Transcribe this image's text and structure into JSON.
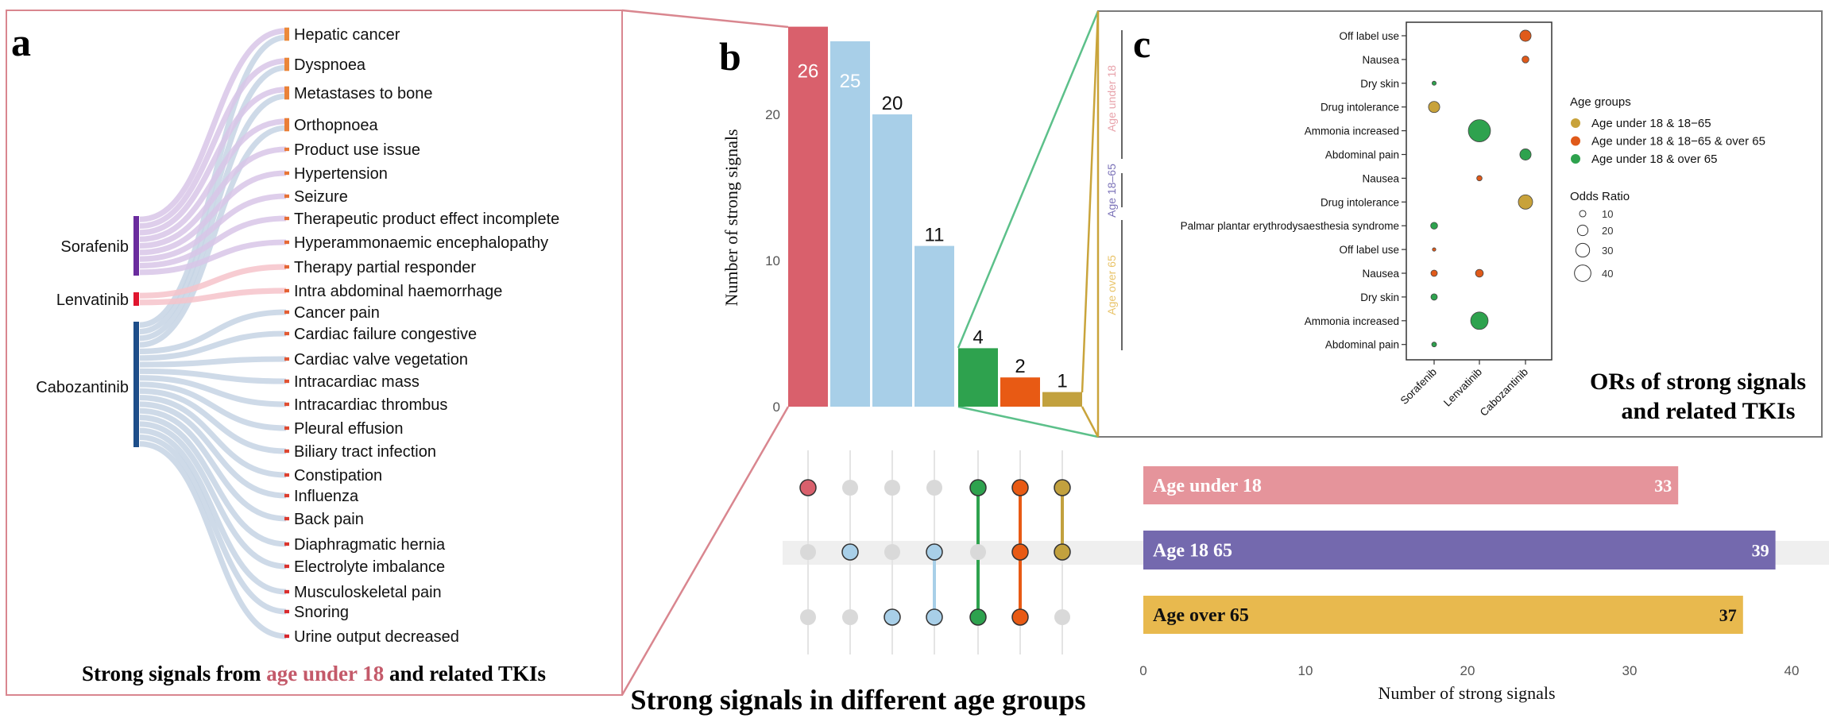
{
  "panel_a": {
    "label": "a",
    "caption_pre": "Strong signals from ",
    "caption_highlight": "age under 18",
    "caption_post": " and related TKIs"
  },
  "panel_b": {
    "label": "b",
    "caption": "Strong signals in different age groups"
  },
  "panel_c": {
    "label": "c",
    "caption_line1": "ORs of strong signals",
    "caption_line2": "and related TKIs"
  },
  "colors": {
    "panel_a_border": "#d9868f",
    "panel_c_border": "#7a7a7a",
    "highlight_text": "#c45a6a",
    "zoom_green": "#5cc08a",
    "zoom_gold": "#c9a43b",
    "band": "#efefef"
  },
  "chart_data": [
    {
      "type": "sankey",
      "title": "Strong signals from age under 18 and related TKIs",
      "sources": [
        {
          "name": "Sorafenib",
          "color": "#6a2c9e",
          "link_color": "#d8c5e8"
        },
        {
          "name": "Lenvatinib",
          "color": "#e0152e",
          "link_color": "#f6c3ca"
        },
        {
          "name": "Cabozantinib",
          "color": "#1d4e8a",
          "link_color": "#c6d4e4"
        }
      ],
      "targets": [
        {
          "name": "Hepatic cancer",
          "from": [
            "Sorafenib",
            "Cabozantinib"
          ]
        },
        {
          "name": "Dyspnoea",
          "from": [
            "Sorafenib",
            "Cabozantinib"
          ]
        },
        {
          "name": "Metastases to bone",
          "from": [
            "Sorafenib",
            "Cabozantinib"
          ]
        },
        {
          "name": "Orthopnoea",
          "from": [
            "Sorafenib",
            "Cabozantinib"
          ]
        },
        {
          "name": "Product use issue",
          "from": [
            "Sorafenib"
          ]
        },
        {
          "name": "Hypertension",
          "from": [
            "Sorafenib"
          ]
        },
        {
          "name": "Seizure",
          "from": [
            "Sorafenib"
          ]
        },
        {
          "name": "Therapeutic product effect incomplete",
          "from": [
            "Sorafenib"
          ]
        },
        {
          "name": "Hyperammonaemic encephalopathy",
          "from": [
            "Sorafenib"
          ]
        },
        {
          "name": "Therapy partial responder",
          "from": [
            "Lenvatinib"
          ]
        },
        {
          "name": "Intra abdominal haemorrhage",
          "from": [
            "Lenvatinib"
          ]
        },
        {
          "name": "Cancer pain",
          "from": [
            "Cabozantinib"
          ]
        },
        {
          "name": "Cardiac failure congestive",
          "from": [
            "Cabozantinib"
          ]
        },
        {
          "name": "Cardiac valve vegetation",
          "from": [
            "Cabozantinib"
          ]
        },
        {
          "name": "Intracardiac mass",
          "from": [
            "Cabozantinib"
          ]
        },
        {
          "name": "Intracardiac thrombus",
          "from": [
            "Cabozantinib"
          ]
        },
        {
          "name": "Pleural effusion",
          "from": [
            "Cabozantinib"
          ]
        },
        {
          "name": "Biliary tract infection",
          "from": [
            "Cabozantinib"
          ]
        },
        {
          "name": "Constipation",
          "from": [
            "Cabozantinib"
          ]
        },
        {
          "name": "Influenza",
          "from": [
            "Cabozantinib"
          ]
        },
        {
          "name": "Back pain",
          "from": [
            "Cabozantinib"
          ]
        },
        {
          "name": "Diaphragmatic hernia",
          "from": [
            "Cabozantinib"
          ]
        },
        {
          "name": "Electrolyte imbalance",
          "from": [
            "Cabozantinib"
          ]
        },
        {
          "name": "Musculoskeletal pain",
          "from": [
            "Cabozantinib"
          ]
        },
        {
          "name": "Snoring",
          "from": [
            "Cabozantinib"
          ]
        },
        {
          "name": "Urine output decreased",
          "from": [
            "Cabozantinib"
          ]
        }
      ],
      "target_color_start": "#ec8a3a",
      "target_color_end": "#d8262c"
    },
    {
      "type": "bar",
      "title": "Strong signals in different age groups",
      "ylabel": "Number of strong signals",
      "yticks": [
        "0",
        "10",
        "20"
      ],
      "ylim": [
        0,
        26
      ],
      "sets": [
        "Age under 18",
        "Age 18-65",
        "Age over 65"
      ],
      "intersections": [
        {
          "members": [
            1,
            0,
            0
          ],
          "value": 26,
          "label": "26",
          "color": "#d9606c",
          "label_inside": true
        },
        {
          "members": [
            0,
            1,
            0
          ],
          "value": 25,
          "label": "25",
          "color": "#a8cfe8",
          "label_inside": true
        },
        {
          "members": [
            0,
            0,
            1
          ],
          "value": 20,
          "label": "20",
          "color": "#a8cfe8",
          "label_inside": false
        },
        {
          "members": [
            0,
            1,
            1
          ],
          "value": 11,
          "label": "11",
          "color": "#a8cfe8",
          "label_inside": false
        },
        {
          "members": [
            1,
            0,
            1
          ],
          "value": 4,
          "label": "4",
          "color": "#2ea24e",
          "label_inside": false
        },
        {
          "members": [
            1,
            1,
            1
          ],
          "value": 2,
          "label": "2",
          "color": "#e85a14",
          "label_inside": false
        },
        {
          "members": [
            1,
            1,
            0
          ],
          "value": 1,
          "label": "1",
          "color": "#c2a13e",
          "label_inside": false
        }
      ],
      "inactive_dot_color": "#d9d9d9"
    },
    {
      "type": "scatter",
      "title": "ORs of strong signals and related TKIs",
      "x_categories": [
        "Sorafenib",
        "Lenvatinib",
        "Cabozantinib"
      ],
      "rows": [
        "Off label use",
        "Nausea",
        "Dry skin",
        "Drug intolerance",
        "Ammonia increased",
        "Abdominal pain",
        "Nausea",
        "Drug intolerance",
        "Palmar plantar erythrodysaesthesia syndrome",
        "Off label use",
        "Nausea",
        "Dry skin",
        "Ammonia increased",
        "Abdominal pain"
      ],
      "row_groups": [
        {
          "label": "Age under 18",
          "color": "#e8a3ab",
          "first_row": 0,
          "last_row": 5
        },
        {
          "label": "Age 18–65",
          "color": "#7b72b8",
          "first_row": 6,
          "last_row": 7
        },
        {
          "label": "Age over 65",
          "color": "#e9c46a",
          "first_row": 8,
          "last_row": 13
        }
      ],
      "points": [
        {
          "row": 0,
          "tki": "Cabozantinib",
          "age_group": 1,
          "odds_ratio": 22
        },
        {
          "row": 1,
          "tki": "Cabozantinib",
          "age_group": 1,
          "odds_ratio": 11
        },
        {
          "row": 2,
          "tki": "Sorafenib",
          "age_group": 2,
          "odds_ratio": 6
        },
        {
          "row": 3,
          "tki": "Sorafenib",
          "age_group": 0,
          "odds_ratio": 22
        },
        {
          "row": 4,
          "tki": "Lenvatinib",
          "age_group": 2,
          "odds_ratio": 66
        },
        {
          "row": 5,
          "tki": "Cabozantinib",
          "age_group": 2,
          "odds_ratio": 22
        },
        {
          "row": 6,
          "tki": "Lenvatinib",
          "age_group": 1,
          "odds_ratio": 8
        },
        {
          "row": 7,
          "tki": "Cabozantinib",
          "age_group": 0,
          "odds_ratio": 32
        },
        {
          "row": 8,
          "tki": "Sorafenib",
          "age_group": 2,
          "odds_ratio": 11
        },
        {
          "row": 9,
          "tki": "Sorafenib",
          "age_group": 1,
          "odds_ratio": 5
        },
        {
          "row": 10,
          "tki": "Sorafenib",
          "age_group": 1,
          "odds_ratio": 10
        },
        {
          "row": 10,
          "tki": "Lenvatinib",
          "age_group": 1,
          "odds_ratio": 13
        },
        {
          "row": 11,
          "tki": "Sorafenib",
          "age_group": 2,
          "odds_ratio": 10
        },
        {
          "row": 12,
          "tki": "Lenvatinib",
          "age_group": 2,
          "odds_ratio": 44
        },
        {
          "row": 13,
          "tki": "Sorafenib",
          "age_group": 2,
          "odds_ratio": 7
        }
      ],
      "legend": {
        "color_title": "Age groups",
        "colors": [
          {
            "label": "Age under 18 & 18−65",
            "color": "#c8a23a"
          },
          {
            "label": "Age under 18 & 18−65 & over 65",
            "color": "#e05a1a"
          },
          {
            "label": "Age under 18 & over 65",
            "color": "#2ea24e"
          }
        ],
        "size_title": "Odds Ratio",
        "sizes": [
          {
            "value": 10,
            "label": "10"
          },
          {
            "value": 20,
            "label": "20"
          },
          {
            "value": 30,
            "label": "30"
          },
          {
            "value": 40,
            "label": "40"
          }
        ],
        "placement": "right"
      }
    },
    {
      "type": "bar",
      "orientation": "horizontal",
      "categories": [
        "Age under 18",
        "Age 18  65",
        "Age over 65"
      ],
      "values": [
        33,
        39,
        37
      ],
      "value_labels": [
        "33",
        "39",
        "37"
      ],
      "colors": [
        "#e5949b",
        "#7469ae",
        "#e8b94e"
      ],
      "text_colors": [
        "#ffffff",
        "#ffffff",
        "#111111"
      ],
      "xlabel": "Number of strong signals",
      "xticks": [
        "0",
        "10",
        "20",
        "30",
        "40"
      ],
      "xlim": [
        0,
        40
      ]
    }
  ]
}
